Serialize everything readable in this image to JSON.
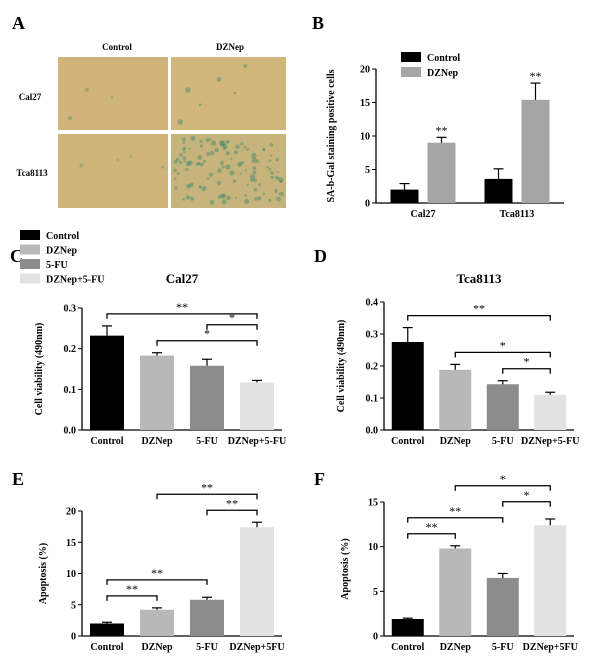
{
  "panels": {
    "A": {
      "letter": "A",
      "columns": [
        "Control",
        "DZNep"
      ],
      "rows": [
        "Cal27",
        "Tca8113"
      ]
    },
    "B": {
      "letter": "B"
    },
    "C": {
      "letter": "C"
    },
    "D": {
      "letter": "D"
    },
    "E": {
      "letter": "E"
    },
    "F": {
      "letter": "F"
    }
  },
  "legend_cdef": [
    "Control",
    "DZNep",
    "5-FU",
    "DZNep+5-FU"
  ],
  "colors": {
    "control": "#000000",
    "dznep": "#b8b8b8",
    "fu5": "#8c8c8c",
    "combo": "#e2e2e2",
    "dznep_B": "#a5a5a5",
    "micrograph_bg": "#d2b67a",
    "stain": "#3a8a6a"
  },
  "chart_data": [
    {
      "panel": "B",
      "type": "bar",
      "ylabel": "SA-b-Gal staining positive cells",
      "ylim": [
        0,
        20
      ],
      "yticks": [
        0,
        5,
        10,
        15,
        20
      ],
      "categories": [
        "Cal27",
        "Tca8113"
      ],
      "series": [
        {
          "name": "Control",
          "values": [
            2.0,
            3.6
          ],
          "errors": [
            0.9,
            1.5
          ]
        },
        {
          "name": "DZNep",
          "values": [
            9.0,
            15.4
          ],
          "errors": [
            0.8,
            2.5
          ]
        }
      ],
      "annotations": [
        {
          "category": "Cal27",
          "series": "DZNep",
          "text": "**"
        },
        {
          "category": "Tca8113",
          "series": "DZNep",
          "text": "**"
        }
      ],
      "legend_position": "top-left"
    },
    {
      "panel": "C",
      "type": "bar",
      "title": "Cal27",
      "ylabel": "Cell viability (490nm)",
      "ylim": [
        0,
        0.3
      ],
      "yticks": [
        "0.0",
        "0.1",
        "0.2",
        "0.3"
      ],
      "categories": [
        "Control",
        "DZNep",
        "5-FU",
        "DZNep+5-FU"
      ],
      "values": [
        0.232,
        0.183,
        0.158,
        0.117
      ],
      "errors": [
        0.024,
        0.007,
        0.016,
        0.005
      ],
      "brackets": [
        {
          "from": 0,
          "to": 3,
          "text": "**"
        },
        {
          "from": 1,
          "to": 3,
          "text": "*"
        },
        {
          "from": 2,
          "to": 3,
          "text": "*"
        }
      ]
    },
    {
      "panel": "D",
      "type": "bar",
      "title": "Tca8113",
      "ylabel": "Cell viability (490nm)",
      "ylim": [
        0,
        0.4
      ],
      "yticks": [
        "0.0",
        "0.1",
        "0.2",
        "0.3",
        "0.4"
      ],
      "categories": [
        "Control",
        "DZNep",
        "5-FU",
        "DZNep+5-FU"
      ],
      "values": [
        0.275,
        0.188,
        0.143,
        0.11
      ],
      "errors": [
        0.045,
        0.017,
        0.011,
        0.008
      ],
      "brackets": [
        {
          "from": 0,
          "to": 3,
          "text": "**"
        },
        {
          "from": 1,
          "to": 3,
          "text": "*"
        },
        {
          "from": 2,
          "to": 3,
          "text": "*"
        }
      ]
    },
    {
      "panel": "E",
      "type": "bar",
      "ylabel": "Apoptosis (%)",
      "ylim": [
        0,
        20
      ],
      "yticks": [
        "0",
        "5",
        "10",
        "15",
        "20"
      ],
      "categories": [
        "Control",
        "DZNep",
        "5-FU",
        "DZNep+5FU"
      ],
      "values": [
        2.0,
        4.2,
        5.8,
        17.4
      ],
      "errors": [
        0.2,
        0.3,
        0.4,
        0.8
      ],
      "brackets": [
        {
          "from": 0,
          "to": 1,
          "text": "**"
        },
        {
          "from": 0,
          "to": 2,
          "text": "**"
        },
        {
          "from": 2,
          "to": 3,
          "text": "**"
        },
        {
          "from": 1,
          "to": 3,
          "text": "**"
        }
      ]
    },
    {
      "panel": "F",
      "type": "bar",
      "ylabel": "Apoptosis (%)",
      "ylim": [
        0,
        15
      ],
      "yticks": [
        "0",
        "5",
        "10",
        "15"
      ],
      "categories": [
        "Control",
        "DZNep",
        "5-FU",
        "DZNep+5FU"
      ],
      "values": [
        1.9,
        9.8,
        6.5,
        12.4
      ],
      "errors": [
        0.1,
        0.3,
        0.5,
        0.7
      ],
      "brackets": [
        {
          "from": 0,
          "to": 1,
          "text": "**"
        },
        {
          "from": 0,
          "to": 2,
          "text": "**"
        },
        {
          "from": 2,
          "to": 3,
          "text": "*"
        },
        {
          "from": 1,
          "to": 3,
          "text": "*"
        }
      ]
    }
  ]
}
